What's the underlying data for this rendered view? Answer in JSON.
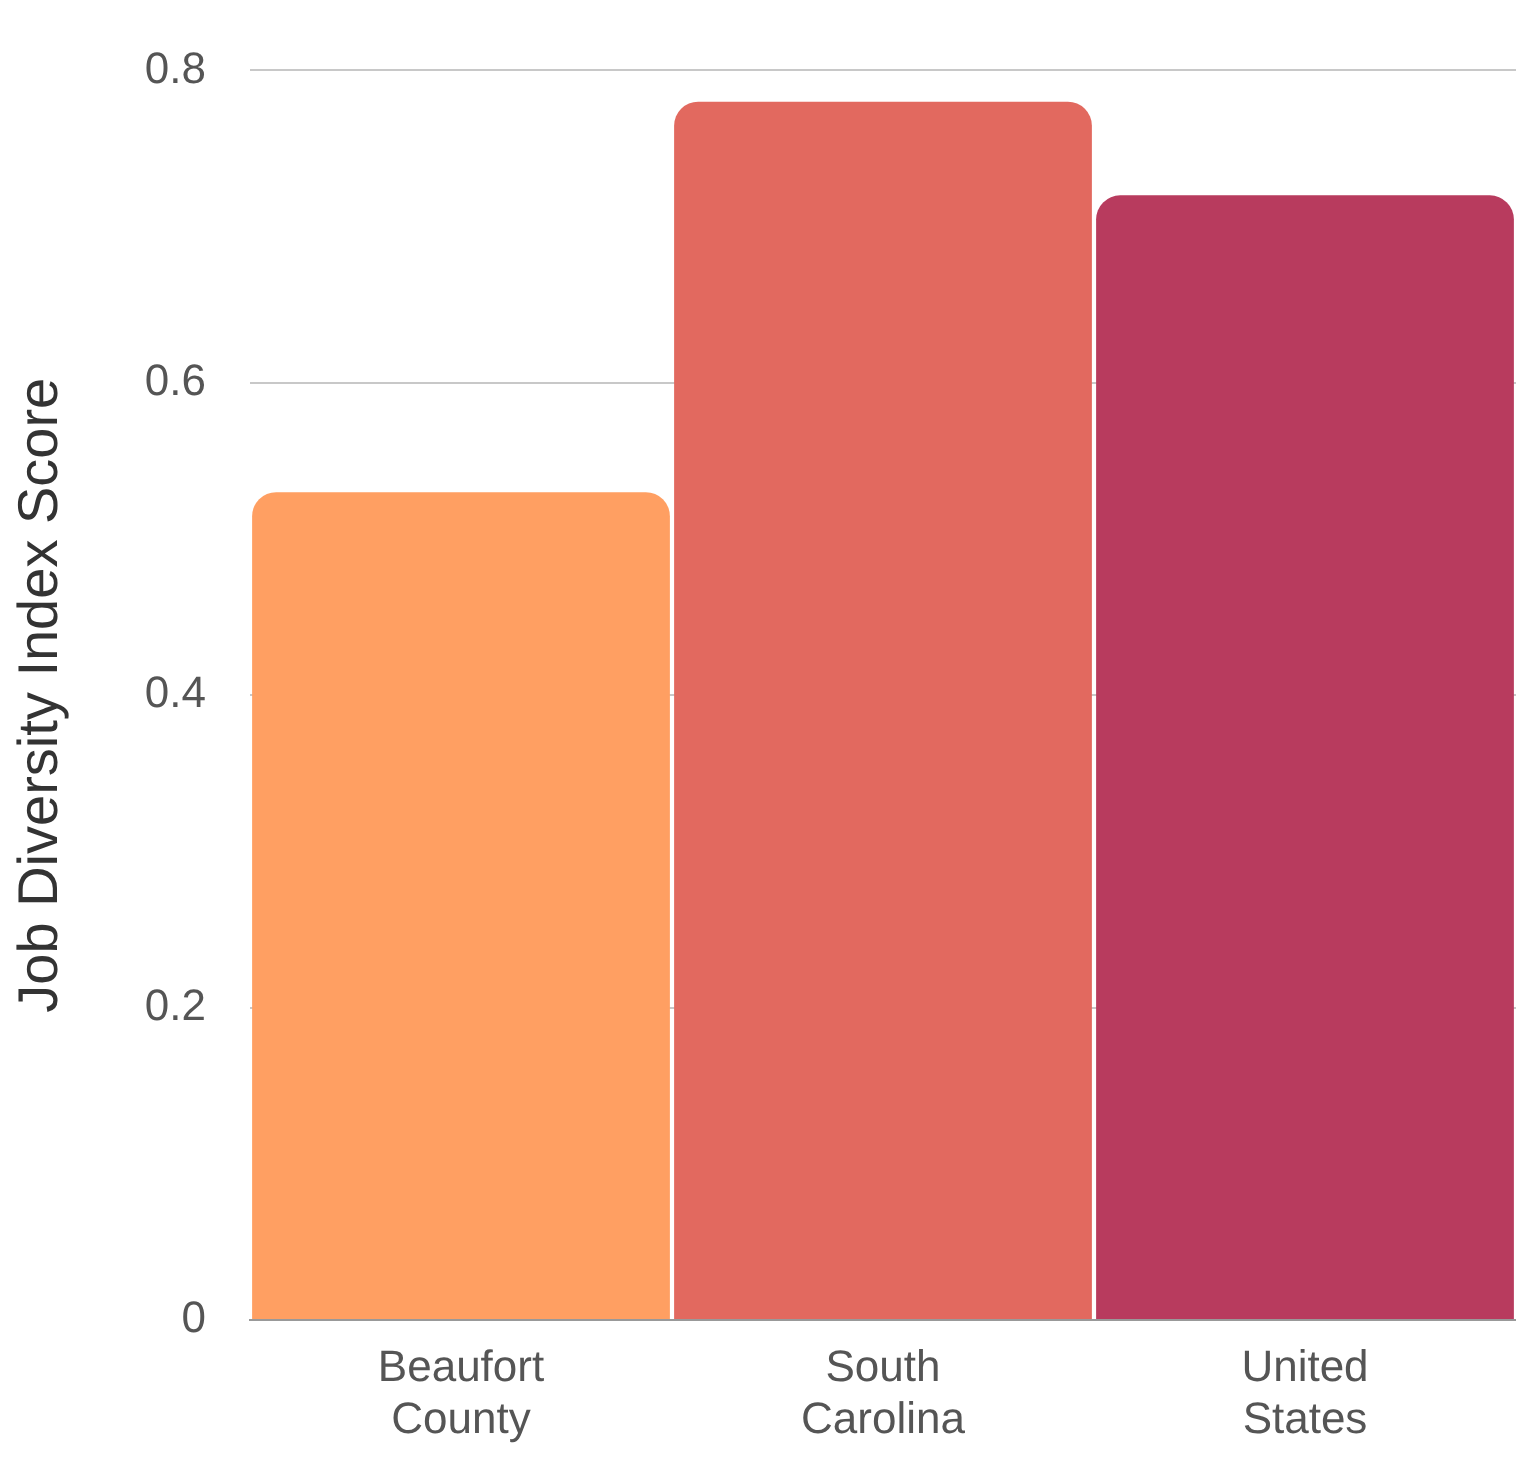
{
  "chart_data": {
    "type": "bar",
    "ylabel": "Job Diversity Index Score",
    "categories": [
      "Beaufort County",
      "South Carolina",
      "United States"
    ],
    "values": [
      0.53,
      0.78,
      0.72
    ],
    "colors": [
      "#ff9f62",
      "#e2695f",
      "#b83b5e"
    ],
    "ylim": [
      0,
      0.8
    ],
    "yticks": [
      0,
      0.2,
      0.4,
      0.6,
      0.8
    ],
    "grid": "y",
    "legend": false
  }
}
